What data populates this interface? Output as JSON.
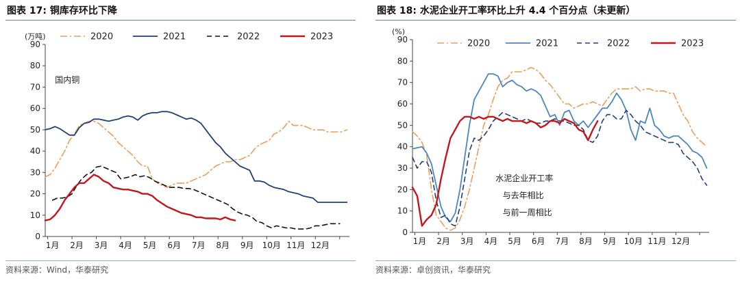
{
  "left": {
    "title": "图表 17:  铜库存环比下降",
    "source": "资料来源：Wind，华泰研究",
    "chart_data": {
      "type": "line",
      "ylabel": "(万吨)",
      "ylim": [
        0,
        90
      ],
      "yticks": [
        0,
        10,
        20,
        30,
        40,
        50,
        60,
        70,
        80,
        90
      ],
      "x_range": [
        0.9,
        13.4
      ],
      "xticks": [
        {
          "x": 1,
          "label": "1月"
        },
        {
          "x": 2,
          "label": "2月"
        },
        {
          "x": 3,
          "label": "3月"
        },
        {
          "x": 4,
          "label": "4月"
        },
        {
          "x": 5,
          "label": "5月"
        },
        {
          "x": 6,
          "label": "6月"
        },
        {
          "x": 7,
          "label": "7月"
        },
        {
          "x": 8,
          "label": "8月"
        },
        {
          "x": 9,
          "label": "9月"
        },
        {
          "x": 10,
          "label": "10月"
        },
        {
          "x": 11,
          "label": "11月"
        },
        {
          "x": 12,
          "label": "12月"
        }
      ],
      "annotations": [
        {
          "text": "国内铜",
          "x": 1.3,
          "y": 72
        }
      ],
      "series": [
        {
          "name": "2020",
          "color": "#ed9d57",
          "dash": "10,4,2,4",
          "width": 1.6,
          "x": [
            0.9,
            1.1,
            1.3,
            1.5,
            1.7,
            1.9,
            2.1,
            2.3,
            2.5,
            2.7,
            2.9,
            3.1,
            3.3,
            3.5,
            3.7,
            3.9,
            4.1,
            4.3,
            4.5,
            4.7,
            4.9,
            5.1,
            5.3,
            5.5,
            5.7,
            5.9,
            6.1,
            6.3,
            6.5,
            6.7,
            6.9,
            7.1,
            7.3,
            7.5,
            7.7,
            7.9,
            8.1,
            8.3,
            8.5,
            8.7,
            8.9,
            9.1,
            9.3,
            9.5,
            9.7,
            9.9,
            10.1,
            10.3,
            10.5,
            10.7,
            10.9,
            11.1,
            11.3,
            11.5,
            11.7,
            11.9,
            12.1,
            12.3,
            12.5,
            12.7,
            12.9,
            13.1,
            13.3
          ],
          "y": [
            28,
            29,
            32,
            36,
            40,
            45,
            48,
            52,
            53,
            54,
            54,
            53,
            51,
            49,
            47,
            44,
            42,
            40,
            38,
            35,
            33,
            33,
            27,
            25,
            24,
            23,
            24,
            25,
            25,
            25,
            26,
            27,
            28,
            29,
            31,
            33,
            34,
            35,
            35,
            36,
            36,
            37,
            38,
            41,
            43,
            44,
            45,
            48,
            49,
            51,
            54,
            52,
            52,
            52,
            51,
            50,
            50,
            50,
            49,
            49,
            49,
            49,
            50
          ]
        },
        {
          "name": "2021",
          "color": "#1f3e7a",
          "dash": "",
          "width": 1.8,
          "x": [
            0.9,
            1.1,
            1.3,
            1.5,
            1.7,
            1.9,
            2.1,
            2.3,
            2.5,
            2.7,
            2.9,
            3.1,
            3.3,
            3.5,
            3.7,
            3.9,
            4.1,
            4.3,
            4.5,
            4.7,
            4.9,
            5.1,
            5.3,
            5.5,
            5.7,
            5.9,
            6.1,
            6.3,
            6.5,
            6.7,
            6.9,
            7.1,
            7.3,
            7.5,
            7.7,
            7.9,
            8.1,
            8.3,
            8.5,
            8.7,
            8.9,
            9.1,
            9.3,
            9.5,
            9.7,
            9.9,
            10.1,
            10.3,
            10.5,
            10.7,
            10.9,
            11.1,
            11.3,
            11.5,
            11.7,
            11.9,
            12.1,
            12.3,
            12.5,
            12.7,
            12.9,
            13.1,
            13.3
          ],
          "y": [
            50,
            50.5,
            51.5,
            50.5,
            49,
            47.5,
            47.5,
            51,
            53,
            53.5,
            55,
            55,
            54.5,
            54,
            54.5,
            55,
            56,
            56.5,
            56,
            54.5,
            56.5,
            57.5,
            58,
            58,
            58.5,
            58.5,
            58,
            57,
            56,
            55,
            55.5,
            54.5,
            53,
            50,
            47,
            44,
            42,
            39,
            37,
            35,
            33,
            32,
            31,
            26,
            26,
            25.5,
            24,
            23,
            22.5,
            22,
            21,
            20.5,
            20,
            19,
            18.5,
            18,
            16,
            16,
            16,
            16,
            16,
            16,
            16
          ]
        },
        {
          "name": "2022",
          "color": "#111111",
          "dash": "7,5",
          "width": 1.6,
          "x": [
            1.2,
            1.4,
            1.6,
            1.8,
            2.0,
            2.2,
            2.4,
            2.6,
            2.8,
            3.0,
            3.2,
            3.4,
            3.6,
            3.8,
            4.0,
            4.2,
            4.4,
            4.6,
            4.8,
            5.0,
            5.2,
            5.4,
            5.6,
            5.8,
            6.0,
            6.2,
            6.4,
            6.6,
            6.8,
            7.0,
            7.2,
            7.4,
            7.6,
            7.8,
            8.0,
            8.2,
            8.4,
            8.6,
            8.8,
            9.0,
            9.2,
            9.4,
            9.6,
            9.8,
            10.0,
            10.2,
            10.4,
            10.6,
            10.8,
            11.0,
            11.2,
            11.4,
            11.6,
            11.8,
            12.0,
            12.2,
            12.4,
            12.6,
            12.8,
            13.0
          ],
          "y": [
            17,
            18,
            18,
            18.5,
            20,
            24,
            27,
            29,
            30,
            32.5,
            33,
            32,
            31,
            30,
            27,
            27.5,
            28,
            29,
            28,
            28.5,
            27.5,
            26,
            25,
            24,
            23,
            23,
            23,
            22.5,
            22.5,
            22,
            21,
            20,
            19,
            18,
            17,
            16,
            15,
            13,
            11.5,
            10.5,
            10,
            9,
            7,
            6.5,
            5,
            4,
            5,
            4.5,
            4,
            4,
            3.5,
            3.5,
            3.5,
            4,
            5,
            5,
            5.5,
            6,
            6,
            6
          ]
        },
        {
          "name": "2023",
          "color": "#c0171d",
          "dash": "",
          "width": 2.4,
          "x": [
            0.9,
            1.1,
            1.3,
            1.5,
            1.7,
            1.9,
            2.1,
            2.3,
            2.5,
            2.7,
            2.9,
            3.1,
            3.3,
            3.5,
            3.7,
            3.9,
            4.1,
            4.3,
            4.5,
            4.7,
            4.9,
            5.1,
            5.3,
            5.5,
            5.7,
            5.9,
            6.1,
            6.3,
            6.5,
            6.7,
            6.9,
            7.1,
            7.3,
            7.5,
            7.7,
            7.9,
            8.1,
            8.3,
            8.5,
            8.7
          ],
          "y": [
            7.5,
            8,
            10,
            13,
            17,
            20,
            23,
            25,
            25,
            27,
            29,
            28,
            26,
            25,
            23,
            22.5,
            22,
            22,
            21.5,
            21,
            20,
            20,
            19,
            17,
            15.5,
            14,
            13,
            12,
            11,
            10.5,
            10,
            9,
            9,
            8.5,
            8.5,
            8.5,
            8,
            9,
            8,
            7.5
          ]
        }
      ]
    }
  },
  "right": {
    "title": "图表 18:  水泥企业开工率环比上升 4.4 个百分点（未更新）",
    "source": "资料来源：卓创资讯，华泰研究",
    "chart_data": {
      "type": "line",
      "ylabel": "(%)",
      "ylim": [
        0,
        90
      ],
      "yticks": [
        0,
        10,
        20,
        30,
        40,
        50,
        60,
        70,
        80,
        90
      ],
      "x_range": [
        0.9,
        13.4
      ],
      "xticks": [
        {
          "x": 1,
          "label": "1月"
        },
        {
          "x": 2,
          "label": "2月"
        },
        {
          "x": 3,
          "label": "3月"
        },
        {
          "x": 4,
          "label": "4月"
        },
        {
          "x": 5,
          "label": "5月"
        },
        {
          "x": 6,
          "label": "6月"
        },
        {
          "x": 7,
          "label": "7月"
        },
        {
          "x": 8,
          "label": "8月"
        },
        {
          "x": 9,
          "label": "9月"
        },
        {
          "x": 10,
          "label": "10月"
        },
        {
          "x": 11,
          "label": "11月"
        },
        {
          "x": 12,
          "label": "12月"
        }
      ],
      "annotations": [
        {
          "text": "水泥企业开工率",
          "x": 4.4,
          "y": 24
        },
        {
          "text": "与去年相比",
          "x": 4.7,
          "y": 16
        },
        {
          "text": "与前一周相比",
          "x": 4.7,
          "y": 8
        }
      ],
      "series": [
        {
          "name": "2020",
          "color": "#ed9d57",
          "dash": "10,4,2,4",
          "width": 1.6,
          "x": [
            0.9,
            1.1,
            1.3,
            1.5,
            1.7,
            1.9,
            2.1,
            2.3,
            2.5,
            2.7,
            2.9,
            3.1,
            3.3,
            3.5,
            3.7,
            3.9,
            4.1,
            4.3,
            4.5,
            4.7,
            4.9,
            5.1,
            5.3,
            5.5,
            5.7,
            5.9,
            6.1,
            6.3,
            6.5,
            6.7,
            6.9,
            7.1,
            7.3,
            7.5,
            7.7,
            7.9,
            8.1,
            8.3,
            8.5,
            8.7,
            8.9,
            9.1,
            9.3,
            9.5,
            9.7,
            9.9,
            10.1,
            10.3,
            10.5,
            10.7,
            10.9,
            11.1,
            11.3,
            11.5,
            11.7,
            11.9,
            12.1,
            12.3,
            12.5,
            12.7,
            12.9,
            13.1,
            13.3
          ],
          "y": [
            47,
            45,
            42,
            36,
            20,
            8,
            5,
            2,
            1,
            2,
            6,
            12,
            20,
            30,
            40,
            50,
            55,
            62,
            68,
            71,
            72,
            75,
            75,
            75,
            76,
            77,
            76,
            74,
            71,
            69,
            66,
            63,
            60,
            60,
            58,
            59,
            60,
            60,
            61,
            60,
            59,
            62,
            65,
            67,
            67,
            67,
            67,
            68,
            66,
            67,
            67,
            66,
            66,
            66,
            65,
            65,
            60,
            55,
            52,
            47,
            44,
            42,
            40
          ]
        },
        {
          "name": "2021",
          "color": "#4a86c1",
          "dash": "",
          "width": 1.8,
          "x": [
            0.9,
            1.1,
            1.3,
            1.5,
            1.7,
            1.9,
            2.1,
            2.3,
            2.5,
            2.7,
            2.9,
            3.1,
            3.3,
            3.5,
            3.7,
            3.9,
            4.1,
            4.3,
            4.5,
            4.7,
            4.9,
            5.1,
            5.3,
            5.5,
            5.7,
            5.9,
            6.1,
            6.3,
            6.5,
            6.7,
            6.9,
            7.1,
            7.3,
            7.5,
            7.7,
            7.9,
            8.1,
            8.3,
            8.5,
            8.7,
            8.9,
            9.1,
            9.3,
            9.5,
            9.7,
            9.9,
            10.1,
            10.3,
            10.5,
            10.7,
            10.9,
            11.1,
            11.3,
            11.5,
            11.7,
            11.9,
            12.1,
            12.3,
            12.5,
            12.7,
            12.9,
            13.1,
            13.3
          ],
          "y": [
            39,
            39.5,
            40,
            37,
            32,
            22,
            12,
            7,
            5,
            9,
            20,
            35,
            50,
            62,
            66,
            70,
            74,
            74,
            73,
            68,
            70,
            71,
            69,
            68,
            66,
            67,
            66,
            64,
            59,
            54,
            55,
            50,
            56,
            57,
            52,
            50,
            52,
            49,
            52,
            55,
            58,
            58,
            61,
            65,
            62,
            57,
            48,
            43,
            52,
            51,
            58,
            50,
            48,
            45,
            44,
            45,
            45,
            43,
            41,
            38,
            37,
            35,
            30
          ]
        },
        {
          "name": "2022",
          "color": "#1f3e7a",
          "dash": "7,5",
          "width": 1.6,
          "x": [
            0.9,
            1.1,
            1.3,
            1.5,
            1.7,
            1.9,
            2.1,
            2.3,
            2.5,
            2.7,
            2.9,
            3.1,
            3.3,
            3.5,
            3.7,
            3.9,
            4.1,
            4.3,
            4.5,
            4.7,
            4.9,
            5.1,
            5.3,
            5.5,
            5.7,
            5.9,
            6.1,
            6.3,
            6.5,
            6.7,
            6.9,
            7.1,
            7.3,
            7.5,
            7.7,
            7.9,
            8.1,
            8.3,
            8.5,
            8.7,
            8.9,
            9.1,
            9.3,
            9.5,
            9.7,
            9.9,
            10.1,
            10.3,
            10.5,
            10.7,
            10.9,
            11.1,
            11.3,
            11.5,
            11.7,
            11.9,
            12.1,
            12.3,
            12.5,
            12.7,
            12.9,
            13.1,
            13.3
          ],
          "y": [
            35,
            30,
            33,
            33,
            28,
            15,
            7,
            8,
            4,
            3,
            12,
            25,
            38,
            44,
            43,
            45,
            48,
            52,
            54,
            56,
            55,
            54,
            53,
            52,
            53,
            52,
            51,
            51,
            52,
            52,
            53,
            52,
            52,
            51,
            50,
            50,
            48,
            43,
            42,
            45,
            52,
            55,
            55,
            53,
            53,
            57,
            55,
            52,
            50,
            47,
            46,
            45,
            44,
            43,
            42,
            42,
            41,
            37,
            35,
            33,
            30,
            25,
            22
          ]
        },
        {
          "name": "2023",
          "color": "#c0171d",
          "dash": "",
          "width": 2.4,
          "x": [
            0.9,
            1.1,
            1.3,
            1.5,
            1.7,
            1.9,
            2.1,
            2.3,
            2.5,
            2.7,
            2.9,
            3.1,
            3.3,
            3.5,
            3.7,
            3.9,
            4.1,
            4.3,
            4.5,
            4.7,
            4.9,
            5.1,
            5.3,
            5.5,
            5.7,
            5.9,
            6.1,
            6.3,
            6.5,
            6.7,
            6.9,
            7.1,
            7.3,
            7.5,
            7.7,
            7.9,
            8.1,
            8.3,
            8.5,
            8.7
          ],
          "y": [
            21,
            17,
            3,
            6,
            8,
            13,
            25,
            35,
            44,
            48,
            52,
            54,
            54,
            53,
            54,
            53,
            54,
            54,
            53,
            52,
            53,
            52,
            52,
            52,
            51,
            52,
            51,
            49,
            50,
            52,
            52,
            51,
            53,
            52,
            51,
            48,
            47,
            43,
            48,
            52
          ]
        }
      ]
    }
  }
}
